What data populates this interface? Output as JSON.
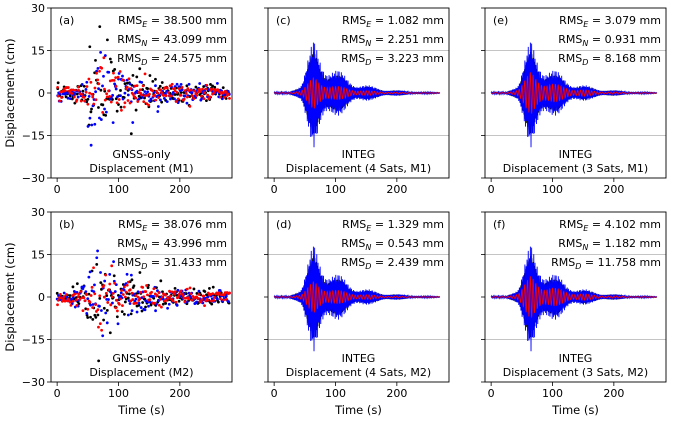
{
  "chart_data": {
    "type": "scatter",
    "x_axis_label": "Time (s)",
    "y_axis_label": "Displacement (cm)",
    "xlim": [
      -10,
      285
    ],
    "ylim": [
      -30,
      30
    ],
    "x_ticks": [
      0,
      100,
      200
    ],
    "y_ticks": [
      -30,
      -15,
      0,
      15,
      30
    ],
    "y_grid_lines": [
      -15,
      15
    ],
    "series_colors": {
      "E": "#000000",
      "N": "#0000ff",
      "D": "#ff0000"
    },
    "panels": [
      {
        "id": "a",
        "label": "(a)",
        "kind": "scatter",
        "caption_line1": "GNSS-only",
        "caption_line2": "Displacement (M1)",
        "rms": [
          {
            "name": "E",
            "value": "38.500 mm"
          },
          {
            "name": "N",
            "value": "43.099 mm"
          },
          {
            "name": "D",
            "value": "24.575 mm"
          }
        ],
        "peak_cm": {
          "E": 23,
          "N": 18,
          "D": 12
        }
      },
      {
        "id": "c",
        "label": "(c)",
        "kind": "line",
        "caption_line1": "INTEG",
        "caption_line2": "Displacement (4 Sats, M1)",
        "rms": [
          {
            "name": "E",
            "value": "1.082 mm"
          },
          {
            "name": "N",
            "value": "2.251 mm"
          },
          {
            "name": "D",
            "value": "3.223 mm"
          }
        ],
        "peak_cm": {
          "E": 20,
          "N": 20,
          "D": 6
        }
      },
      {
        "id": "e",
        "label": "(e)",
        "kind": "line",
        "caption_line1": "INTEG",
        "caption_line2": "Displacement (3 Sats, M1)",
        "rms": [
          {
            "name": "E",
            "value": "3.079 mm"
          },
          {
            "name": "N",
            "value": "0.931 mm"
          },
          {
            "name": "D",
            "value": "8.168 mm"
          }
        ],
        "peak_cm": {
          "E": 20,
          "N": 20,
          "D": 8
        }
      },
      {
        "id": "b",
        "label": "(b)",
        "kind": "scatter",
        "caption_line1": "GNSS-only",
        "caption_line2": "Displacement (M2)",
        "rms": [
          {
            "name": "E",
            "value": "38.076 mm"
          },
          {
            "name": "N",
            "value": "43.996 mm"
          },
          {
            "name": "D",
            "value": "31.433 mm"
          }
        ],
        "peak_cm": {
          "E": 23,
          "N": 19,
          "D": 13
        }
      },
      {
        "id": "d",
        "label": "(d)",
        "kind": "line",
        "caption_line1": "INTEG",
        "caption_line2": "Displacement (4 Sats, M2)",
        "rms": [
          {
            "name": "E",
            "value": "1.329 mm"
          },
          {
            "name": "N",
            "value": "0.543 mm"
          },
          {
            "name": "D",
            "value": "2.439 mm"
          }
        ],
        "peak_cm": {
          "E": 20,
          "N": 20,
          "D": 6
        }
      },
      {
        "id": "f",
        "label": "(f)",
        "kind": "line",
        "caption_line1": "INTEG",
        "caption_line2": "Displacement (3 Sats, M2)",
        "rms": [
          {
            "name": "E",
            "value": "4.102 mm"
          },
          {
            "name": "N",
            "value": "1.182 mm"
          },
          {
            "name": "D",
            "value": "11.758 mm"
          }
        ],
        "peak_cm": {
          "E": 20,
          "N": 20,
          "D": 8
        }
      }
    ]
  }
}
